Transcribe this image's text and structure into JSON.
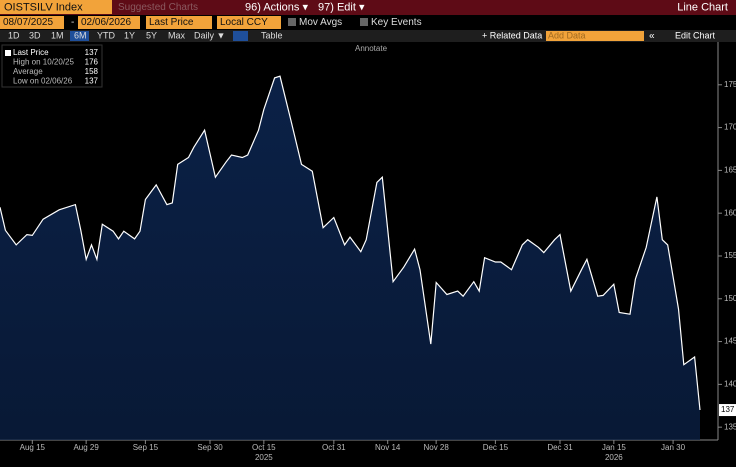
{
  "ui": {
    "ticker": "OISTSILV Index",
    "suggested": "Suggested Charts",
    "actions": "96) Actions ▾",
    "edit": "97) Edit ▾",
    "chart_kind": "Line Chart",
    "start_date": "08/07/2025",
    "dash": "-",
    "end_date": "02/06/2026",
    "field": "Last Price",
    "currency": "Local CCY",
    "mov_avgs": "Mov Avgs",
    "key_events": "Key Events",
    "periods": [
      "1D",
      "3D",
      "1M",
      "6M",
      "YTD",
      "1Y",
      "5Y",
      "Max"
    ],
    "selected_period": 3,
    "frequency": "Daily ▼",
    "table": "Table",
    "related": "+ Related Data",
    "add_data": "Add Data",
    "collapse": "«",
    "edit_chart": "Edit Chart",
    "annotate": "Annotate"
  },
  "chart_data": {
    "type": "area",
    "color": "#ffffff",
    "fill": "#0b2147",
    "legend": [
      {
        "name": "Last Price",
        "value": 137
      },
      {
        "name": "High on 10/20/25",
        "value": 176
      },
      {
        "name": "Average",
        "value": 158
      },
      {
        "name": "Low on 02/06/26",
        "value": 137
      }
    ],
    "x": [
      0,
      1,
      3,
      5,
      6,
      8,
      11,
      14,
      15,
      16,
      17,
      18,
      19,
      21,
      22,
      23,
      25,
      26,
      27,
      29,
      31,
      32,
      33,
      35,
      36,
      38,
      40,
      42,
      43,
      45,
      46,
      48,
      49,
      51,
      52,
      54,
      56,
      58,
      60,
      62,
      64,
      65,
      67,
      68,
      70,
      71,
      73,
      75,
      77,
      78,
      80,
      81,
      83,
      85,
      86,
      88,
      89,
      90,
      92,
      93,
      95,
      97,
      98,
      100,
      101,
      103,
      104,
      106,
      108,
      109,
      111,
      112,
      114,
      115,
      117,
      118,
      120,
      122,
      123,
      124,
      126,
      127,
      129,
      130
    ],
    "values": [
      160.7,
      158,
      156.3,
      157.5,
      157.4,
      159.3,
      160.4,
      161,
      158,
      154.6,
      156.3,
      154.6,
      158.7,
      157.9,
      157,
      157.9,
      157,
      157.9,
      161.6,
      163.3,
      161,
      161.2,
      165.7,
      166.5,
      167.7,
      169.7,
      164.2,
      166,
      166.8,
      166.5,
      166.8,
      169.7,
      172.1,
      175.8,
      176,
      170.9,
      165.7,
      164.9,
      158.3,
      159.5,
      156.3,
      157.2,
      155.5,
      156.9,
      163.6,
      164.2,
      152,
      153.7,
      155.8,
      153.4,
      144.7,
      151.9,
      150.5,
      150.9,
      150.3,
      152,
      150.9,
      154.8,
      154.3,
      154.3,
      153.4,
      156.3,
      156.9,
      156,
      155.4,
      156.9,
      157.5,
      150.9,
      153.4,
      154.6,
      150.3,
      150.4,
      151.7,
      148.4,
      148.2,
      152.3,
      156,
      161.9,
      156.9,
      156.3,
      148.8,
      142.3,
      143.2,
      137
    ],
    "xlim": [
      0,
      130
    ],
    "xticks": [
      {
        "value": 6,
        "label": "Aug 15"
      },
      {
        "value": 16,
        "label": "Aug 29"
      },
      {
        "value": 27,
        "label": "Sep 15"
      },
      {
        "value": 39,
        "label": "Sep 30"
      },
      {
        "value": 49,
        "label": "Oct 15"
      },
      {
        "value": 62,
        "label": "Oct 31"
      },
      {
        "value": 72,
        "label": "Nov 14"
      },
      {
        "value": 81,
        "label": "Nov 28"
      },
      {
        "value": 92,
        "label": "Dec 15"
      },
      {
        "value": 104,
        "label": "Dec 31"
      },
      {
        "value": 114,
        "label": "Jan 15"
      },
      {
        "value": 125,
        "label": "Jan 30"
      }
    ],
    "xyears": [
      {
        "value": 49,
        "label": "2025"
      },
      {
        "value": 114,
        "label": "2026"
      }
    ],
    "ylim": [
      133.5,
      180
    ],
    "yticks": [
      135,
      140,
      145,
      150,
      155,
      160,
      165,
      170,
      175
    ]
  }
}
